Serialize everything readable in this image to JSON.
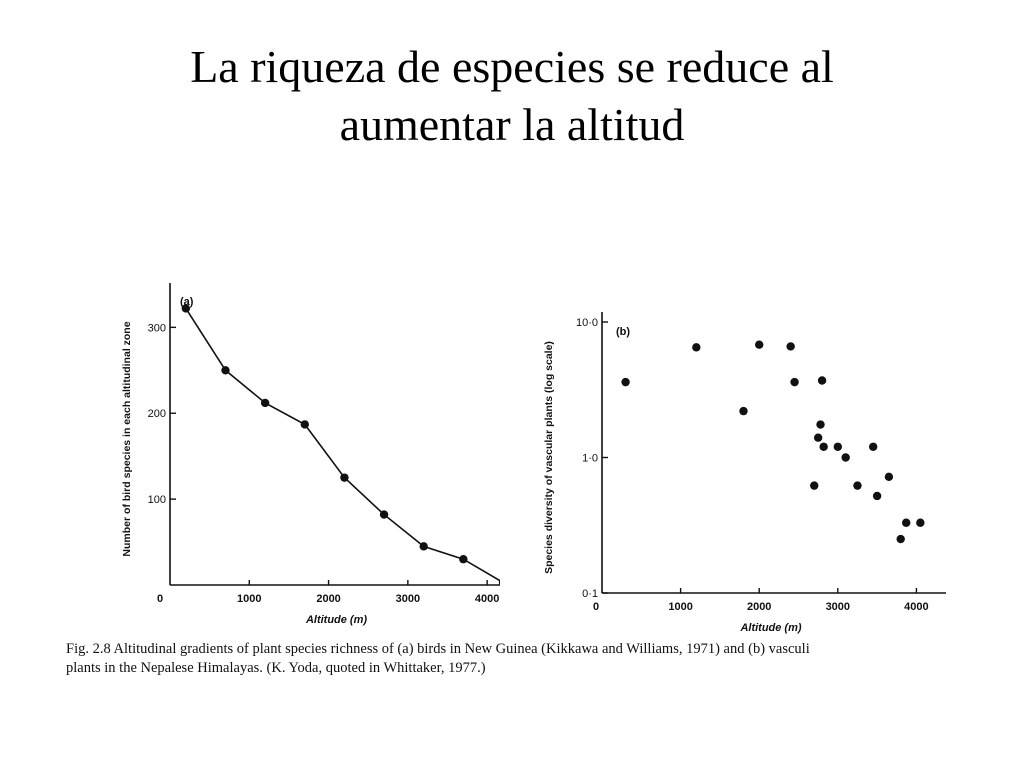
{
  "slide": {
    "title_line1": "La riqueza de especies se reduce al",
    "title_line2": "aumentar la altitud"
  },
  "caption": {
    "line1": "Fig. 2.8  Altitudinal gradients of plant species richness of (a) birds in New Guinea (Kikkawa and Williams, 1971) and (b) vasculi",
    "line2": "plants in the Nepalese Himalayas. (K. Yoda, quoted in Whittaker, 1977.)"
  },
  "chart_data": [
    {
      "type": "line",
      "panel_label": "(a)",
      "xlabel": "Altitude (m)",
      "ylabel": "Number of bird species in each altitudinal zone",
      "xlim": [
        0,
        4200
      ],
      "ylim": [
        0,
        340
      ],
      "x_ticks": [
        0,
        1000,
        2000,
        3000,
        4000
      ],
      "x_tick_labels": [
        "0",
        "1000",
        "2000",
        "3000",
        "4000"
      ],
      "y_ticks": [
        100,
        200,
        300
      ],
      "y_tick_labels": [
        "100",
        "200",
        "300"
      ],
      "series": [
        {
          "x": [
            200,
            700,
            1200,
            1700,
            2200,
            2700,
            3200,
            3700,
            4200
          ],
          "y": [
            322,
            250,
            212,
            187,
            125,
            82,
            45,
            30,
            3
          ]
        }
      ]
    },
    {
      "type": "scatter",
      "panel_label": "(b)",
      "xlabel": "Altitude (m)",
      "ylabel": "Species diversity of vascular plants (log scale)",
      "y_scale": "log",
      "xlim": [
        0,
        4300
      ],
      "ylim": [
        0.1,
        10
      ],
      "x_ticks": [
        0,
        1000,
        2000,
        3000,
        4000
      ],
      "x_tick_labels": [
        "0",
        "1000",
        "2000",
        "3000",
        "4000"
      ],
      "y_ticks": [
        0.1,
        1,
        10
      ],
      "y_tick_labels": [
        "0·1",
        "1·0",
        "10·0"
      ],
      "series": [
        {
          "x": [
            300,
            1200,
            1800,
            2000,
            2400,
            2450,
            2700,
            2750,
            2780,
            2800,
            2820,
            3000,
            3100,
            3250,
            3450,
            3500,
            3650,
            3800,
            3870,
            4050
          ],
          "y": [
            3.6,
            6.5,
            2.2,
            6.8,
            6.6,
            3.6,
            0.62,
            1.4,
            1.75,
            3.7,
            1.2,
            1.2,
            1.0,
            0.62,
            1.2,
            0.52,
            0.72,
            0.25,
            0.33,
            0.33
          ]
        }
      ]
    }
  ]
}
